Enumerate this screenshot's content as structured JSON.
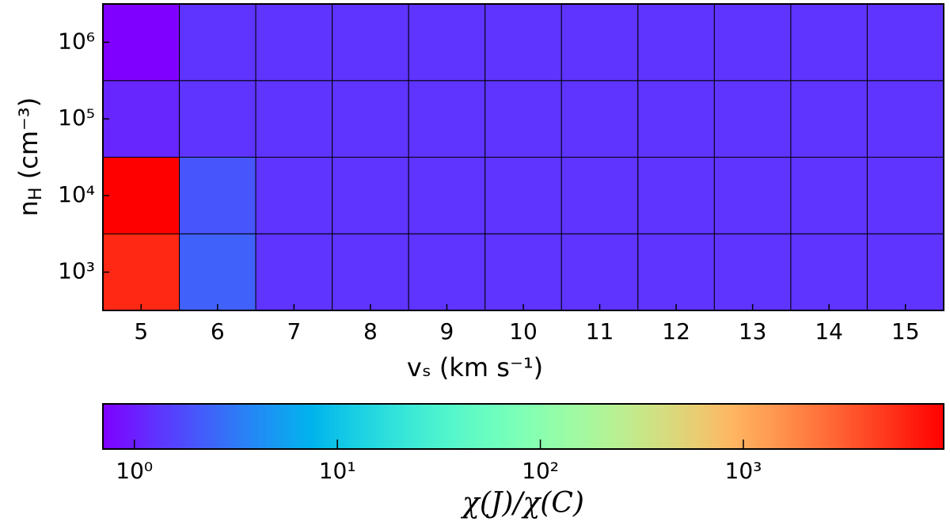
{
  "chart_data": {
    "type": "heatmap",
    "x": [
      5,
      6,
      7,
      8,
      9,
      10,
      11,
      12,
      13,
      14,
      15
    ],
    "categories": [
      "10³",
      "10⁴",
      "10⁵",
      "10⁶"
    ],
    "values": [
      [
        6000,
        2.3,
        1.3,
        1.3,
        1.3,
        1.3,
        1.3,
        1.3,
        1.3,
        1.3,
        1.3
      ],
      [
        9700,
        2.0,
        1.3,
        1.3,
        1.3,
        1.3,
        1.3,
        1.3,
        1.3,
        1.3,
        1.3
      ],
      [
        1.1,
        1.3,
        1.3,
        1.3,
        1.3,
        1.3,
        1.3,
        1.3,
        1.3,
        1.3,
        1.3
      ],
      [
        0.7,
        1.3,
        1.3,
        1.3,
        1.3,
        1.3,
        1.3,
        1.3,
        1.3,
        1.3,
        1.3
      ]
    ],
    "xlabel": "vₛ (km s⁻¹)",
    "ylabel": [
      "n",
      "H",
      " (cm⁻³)"
    ],
    "colormap": "rainbow",
    "colorbar": {
      "scale": "log",
      "lim": [
        0.7,
        9700
      ],
      "ticks": [
        {
          "value": 1,
          "label": "10⁰"
        },
        {
          "value": 10,
          "label": "10¹"
        },
        {
          "value": 100,
          "label": "10²"
        },
        {
          "value": 1000,
          "label": "10³"
        }
      ],
      "label": "χ(J)/χ(C)"
    }
  }
}
